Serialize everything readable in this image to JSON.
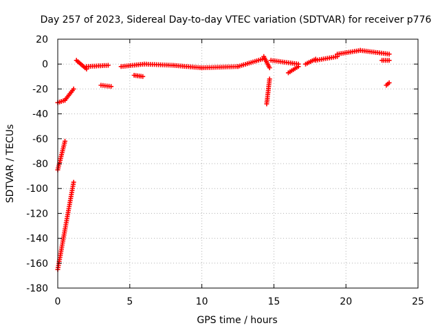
{
  "chart_data": {
    "type": "scatter",
    "title": "Day 257 of 2023, Sidereal Day-to-day VTEC variation (SDTVAR) for receiver p776",
    "xlabel": "GPS time / hours",
    "ylabel": "SDTVAR / TECUs",
    "xlim": [
      0,
      25
    ],
    "ylim": [
      -180,
      20
    ],
    "xticks": [
      0,
      5,
      10,
      15,
      20,
      25
    ],
    "yticks": [
      -180,
      -160,
      -140,
      -120,
      -100,
      -80,
      -60,
      -40,
      -20,
      0,
      20
    ],
    "grid": true,
    "marker": "+",
    "color": "#ff0000",
    "segments": [
      {
        "x0": 0.0,
        "x1": 0.5,
        "y0": -31,
        "y1": -29
      },
      {
        "x0": 0.5,
        "x1": 1.1,
        "y0": -29,
        "y1": -20
      },
      {
        "x0": 0.0,
        "x1": 0.5,
        "y0": -85,
        "y1": -62
      },
      {
        "x0": 0.0,
        "x1": 1.1,
        "y0": -165,
        "y1": -95
      },
      {
        "x0": 1.3,
        "x1": 2.0,
        "y0": 3,
        "y1": -4
      },
      {
        "x0": 2.0,
        "x1": 3.5,
        "y0": -2,
        "y1": -1
      },
      {
        "x0": 3.0,
        "x1": 3.7,
        "y0": -17,
        "y1": -18
      },
      {
        "x0": 4.4,
        "x1": 6.0,
        "y0": -2,
        "y1": 0
      },
      {
        "x0": 5.3,
        "x1": 5.9,
        "y0": -9,
        "y1": -10
      },
      {
        "x0": 6.0,
        "x1": 8.0,
        "y0": 0,
        "y1": -1
      },
      {
        "x0": 8.0,
        "x1": 10.0,
        "y0": -1,
        "y1": -3
      },
      {
        "x0": 10.0,
        "x1": 12.5,
        "y0": -3,
        "y1": -2
      },
      {
        "x0": 12.5,
        "x1": 14.2,
        "y0": -2,
        "y1": 4
      },
      {
        "x0": 14.3,
        "x1": 14.7,
        "y0": 6,
        "y1": -3
      },
      {
        "x0": 14.5,
        "x1": 14.7,
        "y0": -32,
        "y1": -12
      },
      {
        "x0": 14.8,
        "x1": 16.7,
        "y0": 3,
        "y1": 0
      },
      {
        "x0": 16.0,
        "x1": 16.7,
        "y0": -7,
        "y1": -2
      },
      {
        "x0": 17.2,
        "x1": 17.9,
        "y0": 0,
        "y1": 4
      },
      {
        "x0": 17.9,
        "x1": 19.4,
        "y0": 3,
        "y1": 6
      },
      {
        "x0": 19.4,
        "x1": 21.0,
        "y0": 8,
        "y1": 11
      },
      {
        "x0": 21.0,
        "x1": 23.0,
        "y0": 11,
        "y1": 8
      },
      {
        "x0": 22.5,
        "x1": 23.0,
        "y0": 3,
        "y1": 3
      },
      {
        "x0": 22.8,
        "x1": 23.0,
        "y0": -17,
        "y1": -15
      }
    ]
  }
}
